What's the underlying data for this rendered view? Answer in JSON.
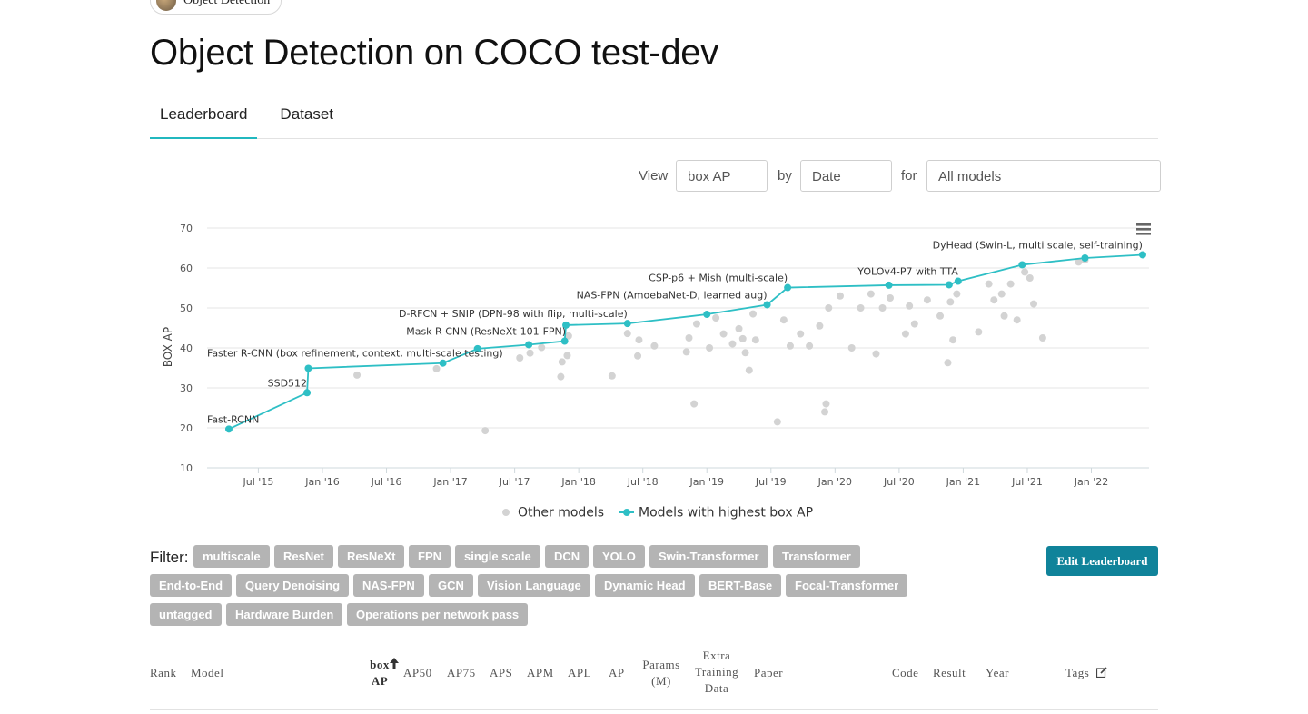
{
  "breadcrumb": {
    "label": "Object Detection"
  },
  "page": {
    "title": "Object Detection on COCO test-dev"
  },
  "tabs": [
    {
      "label": "Leaderboard"
    },
    {
      "label": "Dataset"
    }
  ],
  "view_controls": {
    "view_label": "View",
    "metric": "box AP",
    "by_label": "by",
    "axis": "Date",
    "for_label": "for",
    "models": "All models"
  },
  "chart_data": {
    "type": "scatter",
    "ylabel": "BOX AP",
    "ylim": [
      10,
      70
    ],
    "yticks": [
      10,
      20,
      30,
      40,
      50,
      60,
      70
    ],
    "xlim": [
      2015.1,
      2022.45
    ],
    "xticks": [
      {
        "v": 2015.5,
        "label": "Jul '15"
      },
      {
        "v": 2016.0,
        "label": "Jan '16"
      },
      {
        "v": 2016.5,
        "label": "Jul '16"
      },
      {
        "v": 2017.0,
        "label": "Jan '17"
      },
      {
        "v": 2017.5,
        "label": "Jul '17"
      },
      {
        "v": 2018.0,
        "label": "Jan '18"
      },
      {
        "v": 2018.5,
        "label": "Jul '18"
      },
      {
        "v": 2019.0,
        "label": "Jan '19"
      },
      {
        "v": 2019.5,
        "label": "Jul '19"
      },
      {
        "v": 2020.0,
        "label": "Jan '20"
      },
      {
        "v": 2020.5,
        "label": "Jul '20"
      },
      {
        "v": 2021.0,
        "label": "Jan '21"
      },
      {
        "v": 2021.5,
        "label": "Jul '21"
      },
      {
        "v": 2022.0,
        "label": "Jan '22"
      }
    ],
    "grid": true,
    "legend_position": "bottom",
    "colors": {
      "best": "#2ebfc5",
      "other": "#d3d3d3"
    },
    "series": [
      {
        "name": "Models with highest box AP",
        "points": [
          [
            2015.27,
            19.7
          ],
          [
            2015.88,
            28.8
          ],
          [
            2015.89,
            34.9
          ],
          [
            2016.94,
            36.2
          ],
          [
            2017.21,
            39.8
          ],
          [
            2017.61,
            40.8
          ],
          [
            2017.89,
            41.7
          ],
          [
            2017.9,
            45.7
          ],
          [
            2018.38,
            46.1
          ],
          [
            2019.0,
            48.4
          ],
          [
            2019.47,
            50.8
          ],
          [
            2019.63,
            55.1
          ],
          [
            2020.42,
            55.7
          ],
          [
            2020.89,
            55.8
          ],
          [
            2020.96,
            56.7
          ],
          [
            2021.46,
            60.8
          ],
          [
            2021.95,
            62.5
          ],
          [
            2022.4,
            63.3
          ]
        ]
      },
      {
        "name": "Other models",
        "points": [
          [
            2016.27,
            33.2
          ],
          [
            2016.89,
            34.8
          ],
          [
            2017.27,
            19.3
          ],
          [
            2017.54,
            37.5
          ],
          [
            2017.62,
            38.7
          ],
          [
            2017.71,
            40.1
          ],
          [
            2017.86,
            32.8
          ],
          [
            2017.87,
            36.5
          ],
          [
            2017.91,
            38.1
          ],
          [
            2017.92,
            43.0
          ],
          [
            2018.26,
            33.0
          ],
          [
            2018.38,
            43.6
          ],
          [
            2018.46,
            38.0
          ],
          [
            2018.47,
            42.0
          ],
          [
            2018.59,
            40.5
          ],
          [
            2018.84,
            39.0
          ],
          [
            2018.86,
            42.5
          ],
          [
            2018.9,
            26.0
          ],
          [
            2018.92,
            46.0
          ],
          [
            2019.02,
            40.0
          ],
          [
            2019.07,
            47.5
          ],
          [
            2019.13,
            43.5
          ],
          [
            2019.2,
            41.0
          ],
          [
            2019.25,
            44.8
          ],
          [
            2019.28,
            42.3
          ],
          [
            2019.3,
            38.8
          ],
          [
            2019.33,
            34.4
          ],
          [
            2019.36,
            48.5
          ],
          [
            2019.38,
            42.0
          ],
          [
            2019.55,
            21.5
          ],
          [
            2019.6,
            47.0
          ],
          [
            2019.65,
            40.5
          ],
          [
            2019.73,
            43.5
          ],
          [
            2019.8,
            40.5
          ],
          [
            2019.88,
            45.5
          ],
          [
            2019.92,
            24.0
          ],
          [
            2019.93,
            26.0
          ],
          [
            2019.95,
            50.0
          ],
          [
            2020.04,
            53.0
          ],
          [
            2020.13,
            40.0
          ],
          [
            2020.2,
            50.0
          ],
          [
            2020.28,
            53.5
          ],
          [
            2020.32,
            38.5
          ],
          [
            2020.37,
            50.0
          ],
          [
            2020.43,
            52.5
          ],
          [
            2020.55,
            43.5
          ],
          [
            2020.58,
            50.5
          ],
          [
            2020.62,
            46.0
          ],
          [
            2020.72,
            52.0
          ],
          [
            2020.82,
            48.0
          ],
          [
            2020.88,
            36.3
          ],
          [
            2020.9,
            51.5
          ],
          [
            2020.92,
            42.0
          ],
          [
            2020.95,
            53.5
          ],
          [
            2021.12,
            44.0
          ],
          [
            2021.2,
            56.0
          ],
          [
            2021.24,
            52.0
          ],
          [
            2021.3,
            53.5
          ],
          [
            2021.32,
            48.0
          ],
          [
            2021.37,
            56.0
          ],
          [
            2021.42,
            47.0
          ],
          [
            2021.48,
            59.0
          ],
          [
            2021.52,
            57.5
          ],
          [
            2021.55,
            51.0
          ],
          [
            2021.62,
            42.5
          ],
          [
            2021.9,
            61.5
          ],
          [
            2021.95,
            62.0
          ]
        ]
      }
    ],
    "annotations": [
      {
        "label": "Fast-RCNN",
        "x": 2015.27,
        "y": 19.7
      },
      {
        "label": "SSD512",
        "x": 2015.88,
        "y": 28.8
      },
      {
        "label": "Faster R-CNN (box refinement, context, multi-scale testing)",
        "x": 2016.94,
        "y": 36.2
      },
      {
        "label": "Mask R-CNN (ResNeXt-101-FPN)",
        "x": 2017.9,
        "y": 41.7
      },
      {
        "label": "D-RFCN + SNIP (DPN-98 with flip, multi-scale)",
        "x": 2018.38,
        "y": 46.1
      },
      {
        "label": "NAS-FPN (AmoebaNet-D, learned aug)",
        "x": 2019.47,
        "y": 50.8
      },
      {
        "label": "CSP-p6 + Mish (multi-scale)",
        "x": 2019.63,
        "y": 55.1
      },
      {
        "label": "YOLOv4-P7 with TTA",
        "x": 2020.96,
        "y": 56.7
      },
      {
        "label": "DyHead (Swin-L, multi scale, self-training)",
        "x": 2022.4,
        "y": 63.3
      }
    ]
  },
  "filter": {
    "label": "Filter:",
    "tags": [
      "multiscale",
      "ResNet",
      "ResNeXt",
      "FPN",
      "single scale",
      "DCN",
      "YOLO",
      "Swin-Transformer",
      "Transformer",
      "End-to-End",
      "Query Denoising",
      "NAS-FPN",
      "GCN",
      "Vision Language",
      "Dynamic Head",
      "BERT-Base",
      "Focal-Transformer",
      "untagged",
      "Hardware Burden",
      "Operations per network pass"
    ]
  },
  "edit_button": {
    "label": "Edit Leaderboard"
  },
  "table": {
    "columns": [
      {
        "label": "Rank"
      },
      {
        "label": "Model"
      },
      {
        "label": "box AP",
        "sorted": true
      },
      {
        "label": "AP50"
      },
      {
        "label": "AP75"
      },
      {
        "label": "APS"
      },
      {
        "label": "APM"
      },
      {
        "label": "APL"
      },
      {
        "label": "AP"
      },
      {
        "label": "Params (M)"
      },
      {
        "label": "Extra Training Data"
      },
      {
        "label": "Paper"
      },
      {
        "label": "Code"
      },
      {
        "label": "Result"
      },
      {
        "label": "Year"
      },
      {
        "label": "Tags"
      }
    ]
  }
}
